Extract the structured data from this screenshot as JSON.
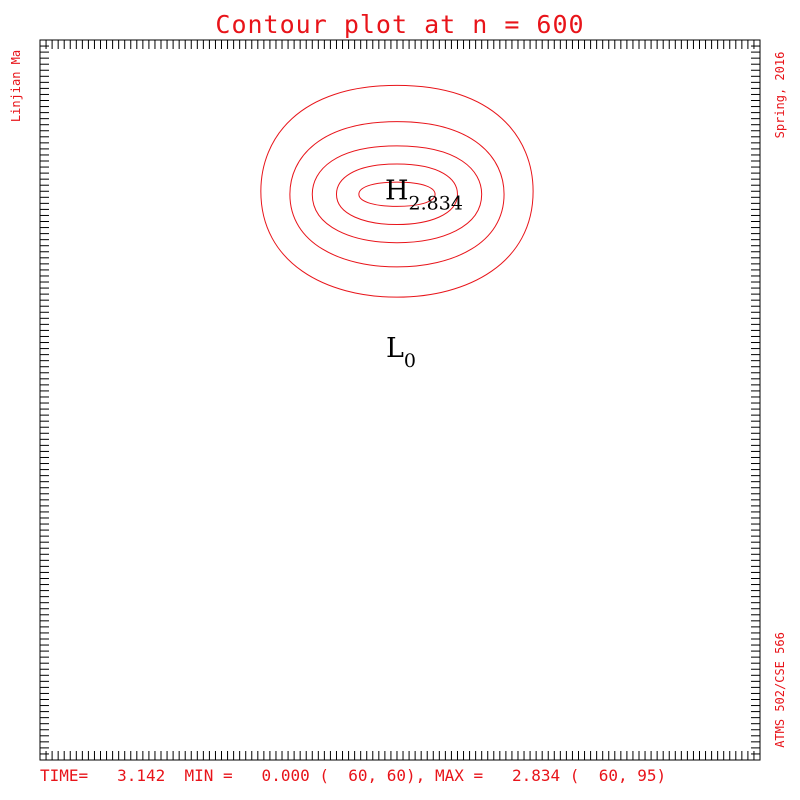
{
  "chart_data": {
    "type": "contour",
    "title": "Contour plot at n = 600",
    "left_note": "Linjian Ma",
    "right_top_note": "Spring, 2016",
    "right_bottom_note": "ATMS 502/CSE 566",
    "footer": "TIME=   3.142  MIN =   0.000 (  60, 60), MAX =   2.834 (  60, 95)",
    "grid_x_range": [
      1,
      120
    ],
    "grid_y_range": [
      1,
      120
    ],
    "line_color": "#e8141a",
    "high": {
      "symbol": "H",
      "value": "2.834",
      "x": 60,
      "y": 95
    },
    "low": {
      "symbol": "L",
      "value": "0",
      "x": 60,
      "y": 60
    },
    "contours": [
      {
        "level": 1,
        "cx": 60,
        "y_top": 112.5,
        "y_bottom": 77.5,
        "half_width": 22.5
      },
      {
        "level": 2,
        "cx": 60,
        "y_top": 106.5,
        "y_bottom": 82.5,
        "half_width": 17.7
      },
      {
        "level": 3,
        "cx": 60,
        "y_top": 102.5,
        "y_bottom": 86.5,
        "half_width": 14.0
      },
      {
        "level": 4,
        "cx": 60,
        "y_top": 99.5,
        "y_bottom": 89.5,
        "half_width": 10.0
      },
      {
        "level": 5,
        "cx": 60,
        "y_top": 96.5,
        "y_bottom": 92.5,
        "half_width": 6.3
      }
    ]
  }
}
